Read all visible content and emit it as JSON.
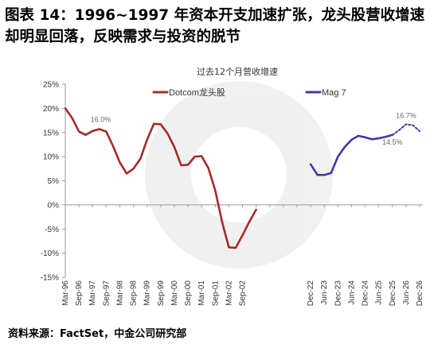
{
  "figure": {
    "title": "图表 14：1996~1997 年资本开支加速扩张，龙头股营收增速却明显回落，反映需求与投资的脱节",
    "source": "资料来源：FactSet，中金公司研究部"
  },
  "chart_data": {
    "type": "line",
    "title": "过去12个月营收增速",
    "xlabel": "",
    "ylabel": "",
    "ylim": [
      -15,
      25
    ],
    "yticks": [
      -15,
      -10,
      -5,
      0,
      5,
      10,
      15,
      20,
      25
    ],
    "ytick_labels": [
      "-15%",
      "-10%",
      "-5%",
      "0%",
      "5%",
      "10%",
      "15%",
      "20%",
      "25%"
    ],
    "grid": false,
    "legend_position": "top",
    "colors": {
      "dotcom": "#a52a2a",
      "mag7": "#3b3ba8",
      "axis": "#999999"
    },
    "x_labels": [
      "Mar-96",
      "Sep-96",
      "Mar-97",
      "Sep-97",
      "Mar-98",
      "Sep-98",
      "Mar-99",
      "Sep-99",
      "Mar-00",
      "Sep-00",
      "Mar-01",
      "Sep-01",
      "Mar-02",
      "Sep-02",
      "",
      "",
      "",
      "",
      "Dec-22",
      "Jun-23",
      "Dec-23",
      "Jun-24",
      "Dec-24",
      "Jun-25",
      "Dec-25",
      "Jun-26",
      "Dec-26"
    ],
    "series": [
      {
        "name": "Dotcom龙头股",
        "values": [
          {
            "x": 0.0,
            "y": 20.0
          },
          {
            "x": 0.5,
            "y": 18.0
          },
          {
            "x": 1.0,
            "y": 15.2
          },
          {
            "x": 1.5,
            "y": 14.5
          },
          {
            "x": 2.0,
            "y": 15.3
          },
          {
            "x": 2.5,
            "y": 15.7
          },
          {
            "x": 3.0,
            "y": 15.2
          },
          {
            "x": 3.5,
            "y": 12.2
          },
          {
            "x": 4.0,
            "y": 8.8
          },
          {
            "x": 4.5,
            "y": 6.5
          },
          {
            "x": 5.0,
            "y": 7.5
          },
          {
            "x": 5.5,
            "y": 9.5
          },
          {
            "x": 6.0,
            "y": 13.5
          },
          {
            "x": 6.5,
            "y": 16.8
          },
          {
            "x": 7.0,
            "y": 16.7
          },
          {
            "x": 7.5,
            "y": 14.8
          },
          {
            "x": 8.0,
            "y": 12.0
          },
          {
            "x": 8.5,
            "y": 8.2
          },
          {
            "x": 9.0,
            "y": 8.3
          },
          {
            "x": 9.5,
            "y": 10.0
          },
          {
            "x": 10.0,
            "y": 10.1
          },
          {
            "x": 10.5,
            "y": 7.6
          },
          {
            "x": 11.0,
            "y": 3.0
          },
          {
            "x": 11.5,
            "y": -3.5
          },
          {
            "x": 12.0,
            "y": -8.8
          },
          {
            "x": 12.5,
            "y": -8.9
          },
          {
            "x": 13.0,
            "y": -6.3
          },
          {
            "x": 13.5,
            "y": -3.5
          },
          {
            "x": 14.0,
            "y": -1.0
          }
        ]
      },
      {
        "name": "Mag 7",
        "values": [
          {
            "x": 18.0,
            "y": 8.4
          },
          {
            "x": 18.5,
            "y": 6.2
          },
          {
            "x": 19.0,
            "y": 6.2
          },
          {
            "x": 19.5,
            "y": 6.6
          },
          {
            "x": 20.0,
            "y": 10.0
          },
          {
            "x": 20.5,
            "y": 12.0
          },
          {
            "x": 21.0,
            "y": 13.5
          },
          {
            "x": 21.5,
            "y": 14.3
          },
          {
            "x": 22.0,
            "y": 14.0
          },
          {
            "x": 22.5,
            "y": 13.6
          },
          {
            "x": 23.0,
            "y": 13.8
          },
          {
            "x": 23.5,
            "y": 14.1
          },
          {
            "x": 24.0,
            "y": 14.5
          }
        ]
      },
      {
        "name": "",
        "dashed": true,
        "values": [
          {
            "x": 24.0,
            "y": 14.5
          },
          {
            "x": 24.5,
            "y": 15.5
          },
          {
            "x": 25.0,
            "y": 16.7
          },
          {
            "x": 25.5,
            "y": 16.5
          },
          {
            "x": 26.0,
            "y": 15.3
          }
        ]
      }
    ],
    "annotations": [
      {
        "text": "16.0%",
        "x": 2.6,
        "y": 16.0
      },
      {
        "text": "16.7%",
        "x": 25.0,
        "y": 16.7
      },
      {
        "text": "14.5%",
        "x": 24.0,
        "y": 14.5
      }
    ]
  }
}
